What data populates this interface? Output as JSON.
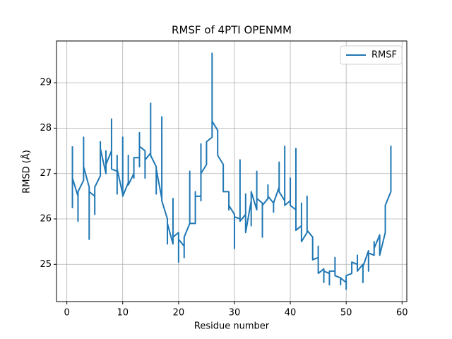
{
  "chart_data": {
    "type": "line",
    "title": "RMSF of 4PTI OPENMM",
    "x_label": "Residue number",
    "y_label": "RMSD (Å)",
    "xlim": [
      -1.85,
      60.85
    ],
    "xticks": [
      0,
      10,
      20,
      30,
      40,
      50,
      60
    ],
    "ylim": [
      24.18,
      29.92
    ],
    "yticks": [
      25,
      26,
      27,
      28,
      29
    ],
    "grid": true,
    "legend": "upper right",
    "series": [
      {
        "name": "RMSF",
        "color": "#1f77b4",
        "x": [
          1,
          1,
          1,
          2,
          2,
          2,
          3,
          3,
          3,
          4,
          4,
          4,
          5,
          5,
          5,
          6,
          6,
          6,
          7,
          7,
          7,
          8,
          8,
          8,
          9,
          9,
          9,
          9,
          10,
          10,
          10,
          11,
          11,
          11,
          12,
          12,
          12,
          13,
          13,
          13,
          13,
          14,
          14,
          14,
          15,
          15,
          15,
          16,
          16,
          16,
          17,
          17,
          17,
          18,
          18,
          18,
          19,
          19,
          19,
          20,
          20,
          20,
          21,
          21,
          21,
          22,
          22,
          22,
          23,
          23,
          23,
          24,
          24,
          24,
          24,
          25,
          25,
          25,
          26,
          26,
          26,
          27,
          27,
          27,
          27,
          28,
          28,
          29,
          29,
          29,
          30,
          30,
          30,
          31,
          31,
          31,
          32,
          32,
          32,
          33,
          33,
          33,
          34,
          34,
          34,
          35,
          35,
          35,
          36,
          36,
          36,
          37,
          37,
          37,
          38,
          38,
          38,
          39,
          39,
          39,
          40,
          40,
          40,
          41,
          41,
          41,
          42,
          42,
          42,
          43,
          43,
          43,
          44,
          44,
          45,
          45,
          45,
          46,
          46,
          46,
          47,
          47,
          47,
          48,
          48,
          48,
          49,
          49,
          49,
          50,
          50,
          50,
          51,
          51,
          52,
          52,
          52,
          53,
          53,
          53,
          54,
          54,
          54,
          55,
          55,
          55,
          56,
          56,
          57,
          57,
          58,
          58,
          58
        ],
        "values": [
          27.6,
          26.25,
          26.9,
          26.5,
          25.95,
          26.6,
          26.85,
          27.8,
          27.15,
          26.7,
          25.55,
          26.6,
          26.5,
          26.1,
          26.7,
          26.95,
          27.7,
          27.55,
          27.0,
          27.5,
          27.2,
          27.5,
          28.2,
          27.1,
          27.05,
          27.4,
          26.55,
          27.1,
          26.55,
          27.8,
          26.5,
          26.8,
          27.4,
          26.75,
          27.0,
          26.9,
          27.35,
          27.35,
          27.9,
          27.15,
          27.6,
          27.5,
          26.9,
          27.3,
          27.45,
          28.55,
          27.4,
          27.15,
          26.55,
          27.1,
          26.45,
          28.25,
          26.4,
          26.0,
          25.45,
          25.9,
          25.45,
          26.45,
          25.6,
          25.7,
          25.05,
          25.55,
          25.4,
          25.15,
          25.6,
          25.9,
          27.05,
          25.9,
          25.9,
          26.6,
          26.5,
          26.5,
          27.65,
          26.4,
          27.0,
          27.2,
          27.65,
          27.7,
          27.8,
          29.65,
          28.15,
          27.95,
          27.4,
          27.85,
          27.4,
          27.2,
          26.6,
          26.6,
          26.2,
          26.3,
          26.1,
          25.35,
          26.05,
          26.0,
          27.3,
          25.95,
          26.1,
          26.55,
          25.7,
          26.4,
          25.85,
          26.6,
          26.2,
          27.05,
          26.45,
          26.35,
          25.6,
          26.3,
          26.45,
          26.75,
          26.5,
          26.35,
          26.15,
          26.35,
          26.7,
          27.25,
          26.6,
          26.4,
          27.6,
          26.3,
          26.4,
          26.9,
          26.3,
          26.2,
          27.55,
          25.75,
          25.85,
          26.35,
          25.5,
          25.7,
          26.5,
          25.75,
          25.6,
          25.1,
          25.15,
          25.4,
          24.8,
          24.9,
          24.6,
          24.85,
          24.8,
          24.55,
          24.85,
          24.85,
          25.15,
          24.75,
          24.7,
          24.55,
          24.7,
          24.6,
          24.45,
          24.75,
          24.8,
          25.05,
          25.0,
          25.2,
          24.85,
          25.0,
          24.6,
          24.95,
          25.3,
          24.85,
          25.25,
          25.2,
          25.5,
          25.35,
          25.65,
          25.2,
          25.7,
          26.3,
          26.6,
          27.6,
          27.15
        ]
      }
    ]
  }
}
